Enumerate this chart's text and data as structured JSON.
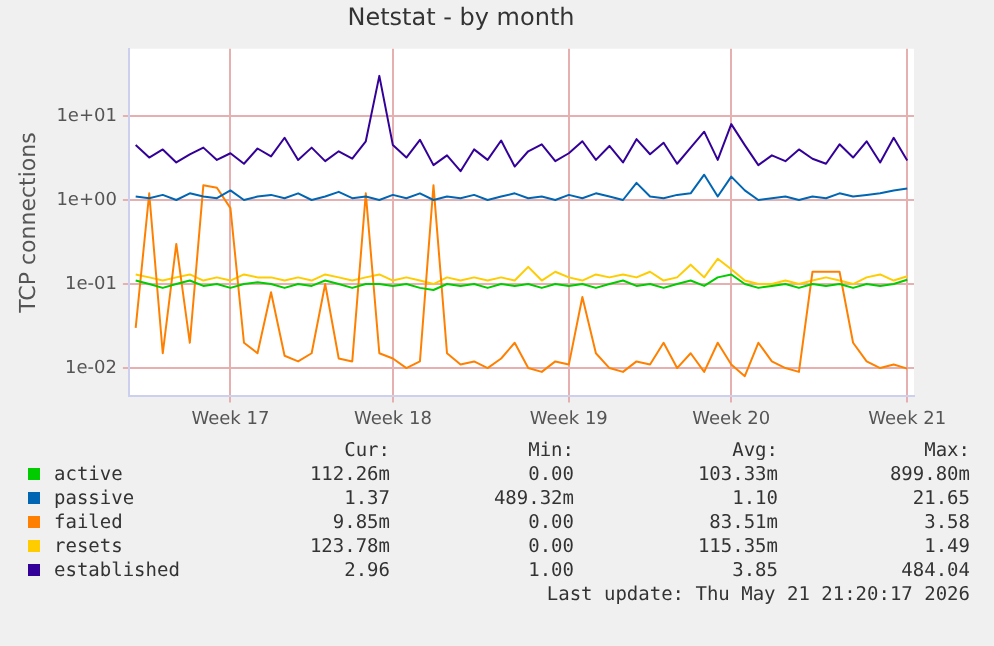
{
  "chart_data": {
    "type": "line",
    "title": "Netstat - by month",
    "ylabel": "TCP connections",
    "log": "y",
    "grid": true,
    "legend": "bottom",
    "marker": "none",
    "line_style": "solid",
    "categories": [
      null,
      null,
      null,
      null,
      null,
      null,
      null,
      "Week 17",
      null,
      null,
      null,
      null,
      null,
      null,
      null,
      null,
      null,
      null,
      null,
      "Week 18",
      null,
      null,
      null,
      null,
      null,
      null,
      null,
      null,
      null,
      null,
      null,
      null,
      "Week 19",
      null,
      null,
      null,
      null,
      null,
      null,
      null,
      null,
      null,
      null,
      null,
      "Week 20",
      null,
      null,
      null,
      null,
      null,
      null,
      null,
      null,
      null,
      null,
      null,
      null,
      "Week 21"
    ],
    "ylim": [
      0.0046,
      63
    ],
    "yticks": [
      {
        "value": 0.01,
        "label": "1e-02"
      },
      {
        "value": 0.1,
        "label": "1e-01"
      },
      {
        "value": 1,
        "label": "1e+00"
      },
      {
        "value": 10,
        "label": "1e+01"
      }
    ],
    "series": [
      {
        "name": "active",
        "color": "#00cc00",
        "values": [
          0.11,
          0.1,
          0.09,
          0.1,
          0.11,
          0.095,
          0.1,
          0.09,
          0.1,
          0.105,
          0.1,
          0.09,
          0.1,
          0.095,
          0.11,
          0.1,
          0.09,
          0.1,
          0.1,
          0.095,
          0.1,
          0.09,
          0.085,
          0.1,
          0.095,
          0.1,
          0.09,
          0.1,
          0.095,
          0.1,
          0.09,
          0.1,
          0.095,
          0.1,
          0.09,
          0.1,
          0.11,
          0.095,
          0.1,
          0.09,
          0.1,
          0.11,
          0.095,
          0.12,
          0.13,
          0.1,
          0.09,
          0.095,
          0.1,
          0.09,
          0.1,
          0.095,
          0.1,
          0.09,
          0.1,
          0.095,
          0.1,
          0.1126
        ]
      },
      {
        "name": "passive",
        "color": "#0066b3",
        "values": [
          1.1,
          1.05,
          1.15,
          1.0,
          1.2,
          1.1,
          1.05,
          1.3,
          1.0,
          1.1,
          1.15,
          1.05,
          1.2,
          1.0,
          1.1,
          1.25,
          1.05,
          1.1,
          1.0,
          1.15,
          1.05,
          1.2,
          1.0,
          1.1,
          1.05,
          1.15,
          1.0,
          1.1,
          1.2,
          1.05,
          1.1,
          1.0,
          1.15,
          1.05,
          1.2,
          1.1,
          1.0,
          1.6,
          1.1,
          1.05,
          1.15,
          1.2,
          2.0,
          1.1,
          1.9,
          1.3,
          1.0,
          1.05,
          1.1,
          1.0,
          1.1,
          1.05,
          1.2,
          1.1,
          1.15,
          1.2,
          1.3,
          1.37
        ]
      },
      {
        "name": "failed",
        "color": "#ff8000",
        "values": [
          0.03,
          1.2,
          0.015,
          0.3,
          0.02,
          1.5,
          1.4,
          0.8,
          0.02,
          0.015,
          0.08,
          0.014,
          0.012,
          0.015,
          0.1,
          0.013,
          0.012,
          1.2,
          0.015,
          0.013,
          0.01,
          0.012,
          1.5,
          0.015,
          0.011,
          0.012,
          0.01,
          0.013,
          0.02,
          0.01,
          0.009,
          0.012,
          0.011,
          0.07,
          0.015,
          0.01,
          0.009,
          0.012,
          0.011,
          0.02,
          0.01,
          0.015,
          0.009,
          0.02,
          0.011,
          0.008,
          0.02,
          0.012,
          0.01,
          0.009,
          0.14,
          0.14,
          0.14,
          0.02,
          0.012,
          0.01,
          0.011,
          0.00985
        ]
      },
      {
        "name": "resets",
        "color": "#ffcc00",
        "values": [
          0.13,
          0.12,
          0.11,
          0.12,
          0.13,
          0.11,
          0.12,
          0.11,
          0.13,
          0.12,
          0.12,
          0.11,
          0.12,
          0.11,
          0.13,
          0.12,
          0.11,
          0.12,
          0.13,
          0.11,
          0.12,
          0.11,
          0.1,
          0.12,
          0.11,
          0.12,
          0.11,
          0.12,
          0.11,
          0.16,
          0.11,
          0.14,
          0.12,
          0.11,
          0.13,
          0.12,
          0.13,
          0.12,
          0.14,
          0.11,
          0.12,
          0.17,
          0.12,
          0.2,
          0.15,
          0.11,
          0.1,
          0.1,
          0.11,
          0.1,
          0.11,
          0.12,
          0.11,
          0.1,
          0.12,
          0.13,
          0.11,
          0.1238
        ]
      },
      {
        "name": "established",
        "color": "#330099",
        "values": [
          4.5,
          3.2,
          4.0,
          2.8,
          3.5,
          4.2,
          3.0,
          3.6,
          2.7,
          4.1,
          3.3,
          5.5,
          3.0,
          4.2,
          2.9,
          3.8,
          3.1,
          5.0,
          30,
          4.5,
          3.2,
          5.2,
          2.6,
          3.4,
          2.2,
          4.0,
          3.0,
          5.1,
          2.5,
          3.8,
          4.6,
          2.9,
          3.6,
          5.0,
          3.0,
          4.4,
          2.8,
          5.3,
          3.5,
          4.8,
          2.7,
          4.2,
          6.5,
          3.0,
          8.0,
          4.5,
          2.6,
          3.4,
          2.9,
          4.0,
          3.1,
          2.7,
          4.6,
          3.2,
          5.0,
          2.8,
          5.5,
          2.96
        ]
      }
    ],
    "annotations": [
      "Cur:",
      "Min:",
      "Avg:",
      "Max:",
      "112.26m",
      "0.00",
      "103.33m",
      "899.80m",
      "1.37",
      "489.32m",
      "1.10",
      "21.65",
      "9.85m",
      "0.00",
      "83.51m",
      "3.58",
      "123.78m",
      "0.00",
      "115.35m",
      "1.49",
      "2.96",
      "1.00",
      "3.85",
      "484.04",
      "Last update: Thu May 21 21:20:17 2026"
    ]
  }
}
